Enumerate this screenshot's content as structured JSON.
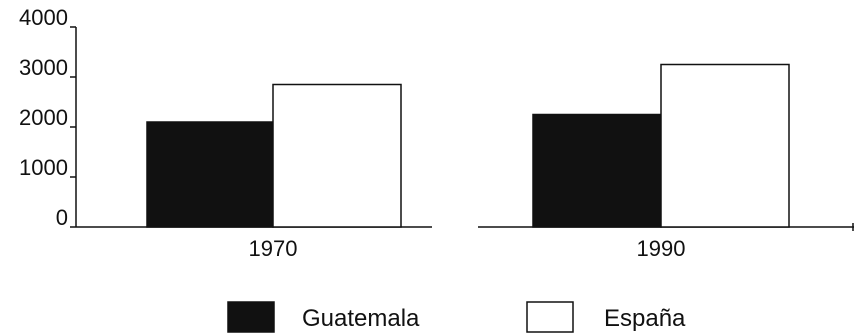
{
  "chart_data": {
    "type": "bar",
    "categories": [
      "1970",
      "1990"
    ],
    "series": [
      {
        "name": "Guatemala",
        "values": [
          2100,
          2250
        ],
        "color": "#111111"
      },
      {
        "name": "España",
        "values": [
          2850,
          3250
        ],
        "color": "#ffffff"
      }
    ],
    "ylim": [
      0,
      4000
    ],
    "yticks": [
      "0",
      "1000",
      "2000",
      "3000",
      "4000"
    ],
    "title": "",
    "xlabel": "",
    "ylabel": "",
    "grid": false,
    "legend_position": "bottom"
  }
}
